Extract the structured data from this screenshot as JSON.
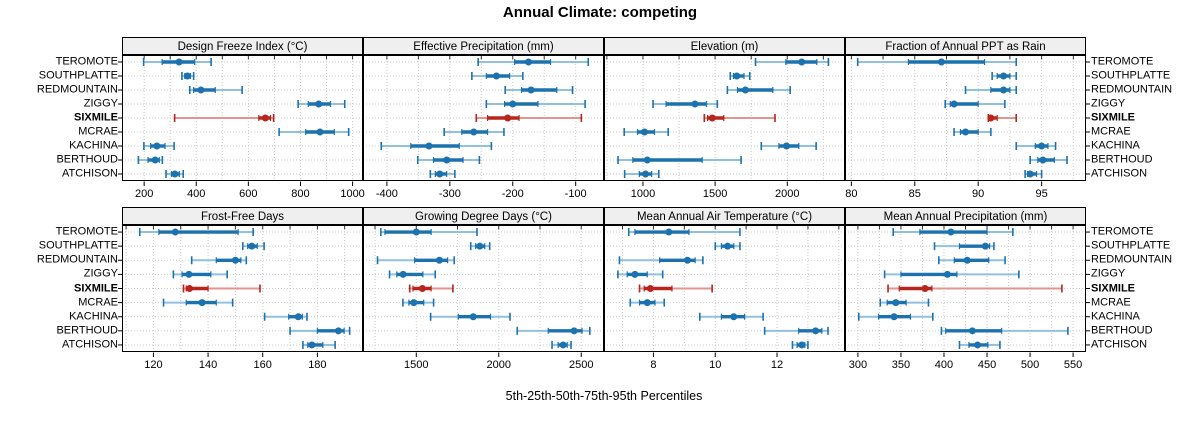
{
  "chart_data": {
    "type": "dotplot-trellis",
    "title": "Annual Climate: competing",
    "caption": "5th-25th-50th-75th-95th Percentiles",
    "stations": [
      "TEROMOTE",
      "SOUTHPLATTE",
      "REDMOUNTAIN",
      "ZIGGY",
      "SIXMILE",
      "MCRAE",
      "KACHINA",
      "BERTHOUD",
      "ATCHISON"
    ],
    "highlight_station": "SIXMILE",
    "colors": {
      "series": "#1c72ae",
      "series_light": "#92c1de",
      "highlight": "#b8251c",
      "highlight_light": "#e2958f",
      "strip_bg": "#efefef",
      "grid": "#c9c9c9",
      "border": "#000000"
    },
    "legend_note": "values are [5th,25th,50th,75th,95th] percentiles per station",
    "panels": [
      {
        "title": "Design Freeze Index (°C)",
        "xlim": [
          115,
          1040
        ],
        "ticks": [
          200,
          400,
          600,
          800,
          1000
        ],
        "series": [
          [
            198,
            269,
            334,
            394,
            457
          ],
          [
            345,
            356,
            366,
            378,
            390
          ],
          [
            375,
            390,
            418,
            473,
            576
          ],
          [
            791,
            830,
            870,
            915,
            970
          ],
          [
            317,
            640,
            665,
            685,
            697
          ],
          [
            718,
            820,
            875,
            930,
            985
          ],
          [
            199,
            225,
            249,
            280,
            315
          ],
          [
            178,
            215,
            242,
            258,
            270
          ],
          [
            284,
            305,
            318,
            335,
            350
          ]
        ]
      },
      {
        "title": "Effective Precipitation (mm)",
        "xlim": [
          -438,
          -55
        ],
        "ticks": [
          -400,
          -300,
          -200,
          -100
        ],
        "series": [
          [
            -255,
            -197,
            -175,
            -140,
            -80
          ],
          [
            -265,
            -242,
            -226,
            -205,
            -184
          ],
          [
            -212,
            -186,
            -171,
            -130,
            -105
          ],
          [
            -242,
            -213,
            -200,
            -160,
            -85
          ],
          [
            -258,
            -240,
            -208,
            -190,
            -91
          ],
          [
            -309,
            -281,
            -262,
            -240,
            -214
          ],
          [
            -409,
            -362,
            -333,
            -285,
            -234
          ],
          [
            -351,
            -326,
            -305,
            -279,
            -253
          ],
          [
            -331,
            -323,
            -316,
            -305,
            -292
          ]
        ]
      },
      {
        "title": "Elevation (m)",
        "xlim": [
          730,
          2400
        ],
        "ticks": [
          1000,
          1500,
          2000
        ],
        "series": [
          [
            1780,
            1990,
            2100,
            2205,
            2285
          ],
          [
            1605,
            1627,
            1650,
            1700,
            1740
          ],
          [
            1585,
            1655,
            1710,
            1900,
            2020
          ],
          [
            1070,
            1160,
            1360,
            1440,
            1515
          ],
          [
            1425,
            1448,
            1480,
            1560,
            1915
          ],
          [
            870,
            962,
            1010,
            1080,
            1175
          ],
          [
            1820,
            1942,
            1995,
            2080,
            2200
          ],
          [
            827,
            930,
            1030,
            1410,
            1680
          ],
          [
            873,
            975,
            1018,
            1060,
            1110
          ]
        ]
      },
      {
        "title": "Fraction of Annual PPT as Rain",
        "xlim": [
          79.5,
          98.5
        ],
        "ticks": [
          80,
          85,
          90,
          95
        ],
        "series": [
          [
            80.5,
            84.5,
            87.1,
            90.5,
            93
          ],
          [
            91.1,
            91.5,
            92,
            92.5,
            93
          ],
          [
            89,
            91,
            92,
            92.5,
            93
          ],
          [
            87.4,
            87.8,
            88.1,
            90,
            92.1
          ],
          [
            90.8,
            90.9,
            91,
            91.5,
            93
          ],
          [
            88.1,
            88.6,
            89,
            90,
            91
          ],
          [
            93,
            94.5,
            95,
            95.5,
            96.1
          ],
          [
            94.1,
            94.7,
            95.1,
            96,
            97
          ],
          [
            93.7,
            93.9,
            94.1,
            94.6,
            95
          ]
        ]
      },
      {
        "title": "Frost-Free Days",
        "xlim": [
          108.5,
          196.7
        ],
        "ticks": [
          120,
          140,
          160,
          180
        ],
        "series": [
          [
            115,
            122,
            128,
            151,
            156.5
          ],
          [
            152.7,
            154.5,
            156,
            158,
            160.5
          ],
          [
            134,
            143,
            150,
            152,
            154
          ],
          [
            127.3,
            130.5,
            133,
            141,
            147
          ],
          [
            131,
            132,
            133.2,
            140,
            159
          ],
          [
            123.7,
            132,
            137.8,
            143,
            149
          ],
          [
            160.7,
            169.5,
            173,
            174.5,
            176.2
          ],
          [
            170,
            180,
            187.7,
            189.8,
            191.8
          ],
          [
            174.7,
            176.5,
            178,
            182,
            186.5
          ]
        ]
      },
      {
        "title": "Growing Degree Days (°C)",
        "xlim": [
          1177,
          2638
        ],
        "ticks": [
          1500,
          2000,
          2500
        ],
        "series": [
          [
            1285,
            1310,
            1500,
            1590,
            1868
          ],
          [
            1830,
            1860,
            1885,
            1915,
            1945
          ],
          [
            1265,
            1490,
            1640,
            1690,
            1730
          ],
          [
            1338,
            1382,
            1420,
            1540,
            1615
          ],
          [
            1460,
            1480,
            1537,
            1590,
            1722
          ],
          [
            1419,
            1455,
            1485,
            1545,
            1605
          ],
          [
            1587,
            1755,
            1845,
            1950,
            2068
          ],
          [
            2112,
            2300,
            2457,
            2505,
            2552
          ],
          [
            2323,
            2360,
            2390,
            2415,
            2438
          ]
        ]
      },
      {
        "title": "Mean Annual Air Temperature (°C)",
        "xlim": [
          6.4,
          14.2
        ],
        "ticks": [
          8,
          10,
          12
        ],
        "series": [
          [
            7.2,
            7.4,
            8.5,
            9.15,
            10.8
          ],
          [
            10,
            10.2,
            10.4,
            10.6,
            10.8
          ],
          [
            6.9,
            8.2,
            9.1,
            9.35,
            9.6
          ],
          [
            6.85,
            7.15,
            7.4,
            7.8,
            8.3
          ],
          [
            7.55,
            7.7,
            7.9,
            8.6,
            9.9
          ],
          [
            7.25,
            7.55,
            7.8,
            8.05,
            8.35
          ],
          [
            9.5,
            10.2,
            10.6,
            10.95,
            11.55
          ],
          [
            11.6,
            12.7,
            13.25,
            13.45,
            13.65
          ],
          [
            12.5,
            12.65,
            12.8,
            12.9,
            13
          ]
        ]
      },
      {
        "title": "Mean Annual Precipitation (mm)",
        "xlim": [
          285,
          565
        ],
        "ticks": [
          300,
          350,
          400,
          450,
          500,
          550
        ],
        "series": [
          [
            341,
            372,
            408,
            450,
            480
          ],
          [
            389,
            418,
            448,
            453,
            458
          ],
          [
            394,
            412,
            427,
            452,
            471
          ],
          [
            331,
            350,
            404,
            415,
            487
          ],
          [
            335,
            348,
            378,
            386,
            537
          ],
          [
            326,
            334,
            344,
            356,
            382
          ],
          [
            301,
            324,
            342,
            361,
            387
          ],
          [
            397,
            402,
            433,
            467,
            544
          ],
          [
            418,
            429,
            439,
            451,
            465
          ]
        ]
      }
    ]
  }
}
